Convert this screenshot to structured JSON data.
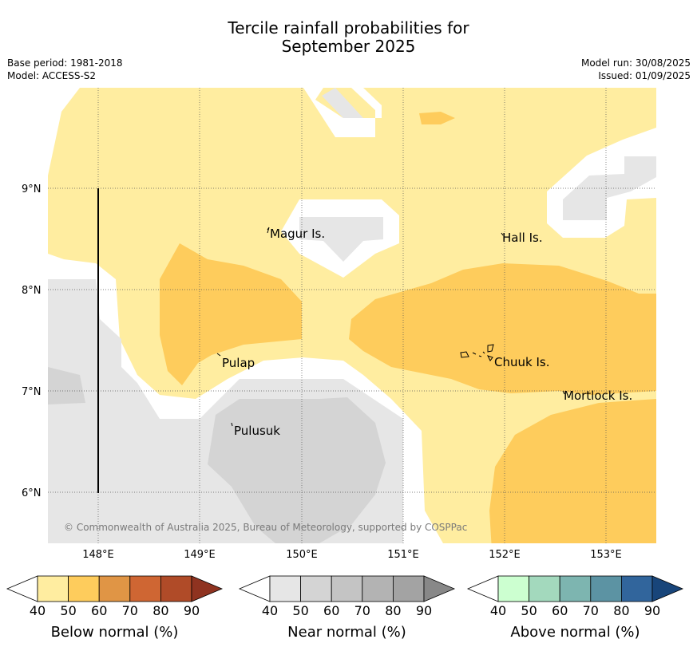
{
  "header": {
    "title_line1": "Tercile rainfall probabilities for",
    "title_line2": "September 2025",
    "base_period": "Base period: 1981-2018",
    "model": "Model: ACCESS-S2",
    "model_run": "Model run: 30/08/2025",
    "issued": "Issued: 01/09/2025"
  },
  "map": {
    "lat_ticks": [
      "9°N",
      "8°N",
      "7°N",
      "6°N"
    ],
    "lon_ticks": [
      "148°E",
      "149°E",
      "150°E",
      "151°E",
      "152°E",
      "153°E"
    ],
    "places": [
      "Magur Is.",
      "Hall Is.",
      "Pulap",
      "Chuuk Is.",
      "Mortlock Is.",
      "Pulusuk"
    ],
    "copyright": "© Commonwealth of Australia 2025, Bureau of Meteorology, supported by COSPPac"
  },
  "colorbars": [
    {
      "name": "below",
      "title": "Below normal (%)",
      "ticks": [
        "40",
        "50",
        "60",
        "70",
        "80",
        "90"
      ],
      "colors": [
        "#ffffff",
        "#ffeda0",
        "#fecc5c",
        "#e09545",
        "#cf6633",
        "#b04b28",
        "#8f3320"
      ]
    },
    {
      "name": "near",
      "title": "Near normal (%)",
      "ticks": [
        "40",
        "50",
        "60",
        "70",
        "80",
        "90"
      ],
      "colors": [
        "#ffffff",
        "#e6e6e6",
        "#d4d4d4",
        "#c4c4c4",
        "#b3b3b3",
        "#a3a3a3",
        "#888888"
      ]
    },
    {
      "name": "above",
      "title": "Above normal (%)",
      "ticks": [
        "40",
        "50",
        "60",
        "70",
        "80",
        "90"
      ],
      "colors": [
        "#ffffff",
        "#ccffd0",
        "#a3d9bd",
        "#7db5b0",
        "#5c93a3",
        "#31659c",
        "#18457a"
      ]
    }
  ]
}
